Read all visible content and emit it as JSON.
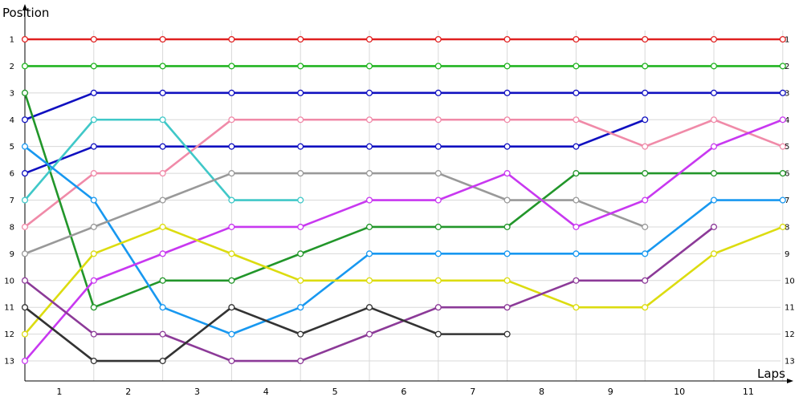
{
  "chart_data": {
    "type": "line",
    "ylabel": "Position",
    "xlabel": "Laps",
    "x_tick_labels": [
      "1",
      "2",
      "3",
      "4",
      "5",
      "6",
      "7",
      "8",
      "9",
      "10",
      "11"
    ],
    "y_tick_labels": [
      "1",
      "2",
      "3",
      "4",
      "5",
      "6",
      "7",
      "8",
      "9",
      "10",
      "11",
      "12",
      "13"
    ],
    "xlim": [
      0,
      11.5
    ],
    "ylim": [
      1,
      13
    ],
    "y_inverted": true,
    "grid": true,
    "series": [
      {
        "color": "#e02020",
        "x": [
          0,
          1,
          2,
          3,
          4,
          5,
          6,
          7,
          8,
          9,
          10,
          11
        ],
        "y": [
          1,
          1,
          1,
          1,
          1,
          1,
          1,
          1,
          1,
          1,
          1,
          1
        ]
      },
      {
        "color": "#22b422",
        "x": [
          0,
          1,
          2,
          3,
          4,
          5,
          6,
          7,
          8,
          9,
          10,
          11
        ],
        "y": [
          2,
          2,
          2,
          2,
          2,
          2,
          2,
          2,
          2,
          2,
          2,
          2
        ]
      },
      {
        "color": "#1010c0",
        "x": [
          0,
          1,
          2,
          3,
          4,
          5,
          6,
          7,
          8,
          9,
          10,
          11
        ],
        "y": [
          4,
          3,
          3,
          3,
          3,
          3,
          3,
          3,
          3,
          3,
          3,
          3
        ]
      },
      {
        "color": "#1010c0",
        "x": [
          0,
          1,
          2,
          3,
          4,
          5,
          6,
          7,
          8,
          9
        ],
        "y": [
          6,
          5,
          5,
          5,
          5,
          5,
          5,
          5,
          5,
          4
        ]
      },
      {
        "color": "#f08aa8",
        "x": [
          0,
          1,
          2,
          3,
          4,
          5,
          6,
          7,
          8,
          9,
          10,
          11
        ],
        "y": [
          8,
          6,
          6,
          4,
          4,
          4,
          4,
          4,
          4,
          5,
          4,
          5
        ]
      },
      {
        "color": "#22962a",
        "x": [
          0,
          1,
          2,
          3,
          4,
          5,
          6,
          7,
          8,
          9,
          10,
          11
        ],
        "y": [
          3,
          11,
          10,
          10,
          9,
          8,
          8,
          8,
          6,
          6,
          6,
          6
        ]
      },
      {
        "color": "#40c8c8",
        "x": [
          0,
          1,
          2,
          3,
          4
        ],
        "y": [
          7,
          4,
          4,
          7,
          7
        ]
      },
      {
        "color": "#1898f0",
        "x": [
          0,
          1,
          2,
          3,
          4,
          5,
          6,
          7,
          8,
          9,
          10,
          11
        ],
        "y": [
          5,
          7,
          11,
          12,
          11,
          9,
          9,
          9,
          9,
          9,
          7,
          7
        ]
      },
      {
        "color": "#999999",
        "x": [
          0,
          1,
          2,
          3,
          4,
          5,
          6,
          7,
          8,
          9
        ],
        "y": [
          9,
          8,
          7,
          6,
          6,
          6,
          6,
          7,
          7,
          8
        ]
      },
      {
        "color": "#c838f0",
        "x": [
          0,
          1,
          2,
          3,
          4,
          5,
          6,
          7,
          8,
          9,
          10,
          11
        ],
        "y": [
          13,
          10,
          9,
          8,
          8,
          7,
          7,
          6,
          8,
          7,
          5,
          4
        ]
      },
      {
        "color": "#dcdc10",
        "x": [
          0,
          1,
          2,
          3,
          4,
          5,
          6,
          7,
          8,
          9,
          10,
          11
        ],
        "y": [
          12,
          9,
          8,
          9,
          10,
          10,
          10,
          10,
          11,
          11,
          9,
          8
        ]
      },
      {
        "color": "#8c3a98",
        "x": [
          0,
          1,
          2,
          3,
          4,
          5,
          6,
          7,
          8,
          9,
          10
        ],
        "y": [
          10,
          12,
          12,
          13,
          13,
          12,
          11,
          11,
          10,
          10,
          8
        ]
      },
      {
        "color": "#333333",
        "x": [
          0,
          1,
          2,
          3,
          4,
          5,
          6,
          7
        ],
        "y": [
          11,
          13,
          13,
          11,
          12,
          11,
          12,
          12
        ]
      }
    ]
  }
}
